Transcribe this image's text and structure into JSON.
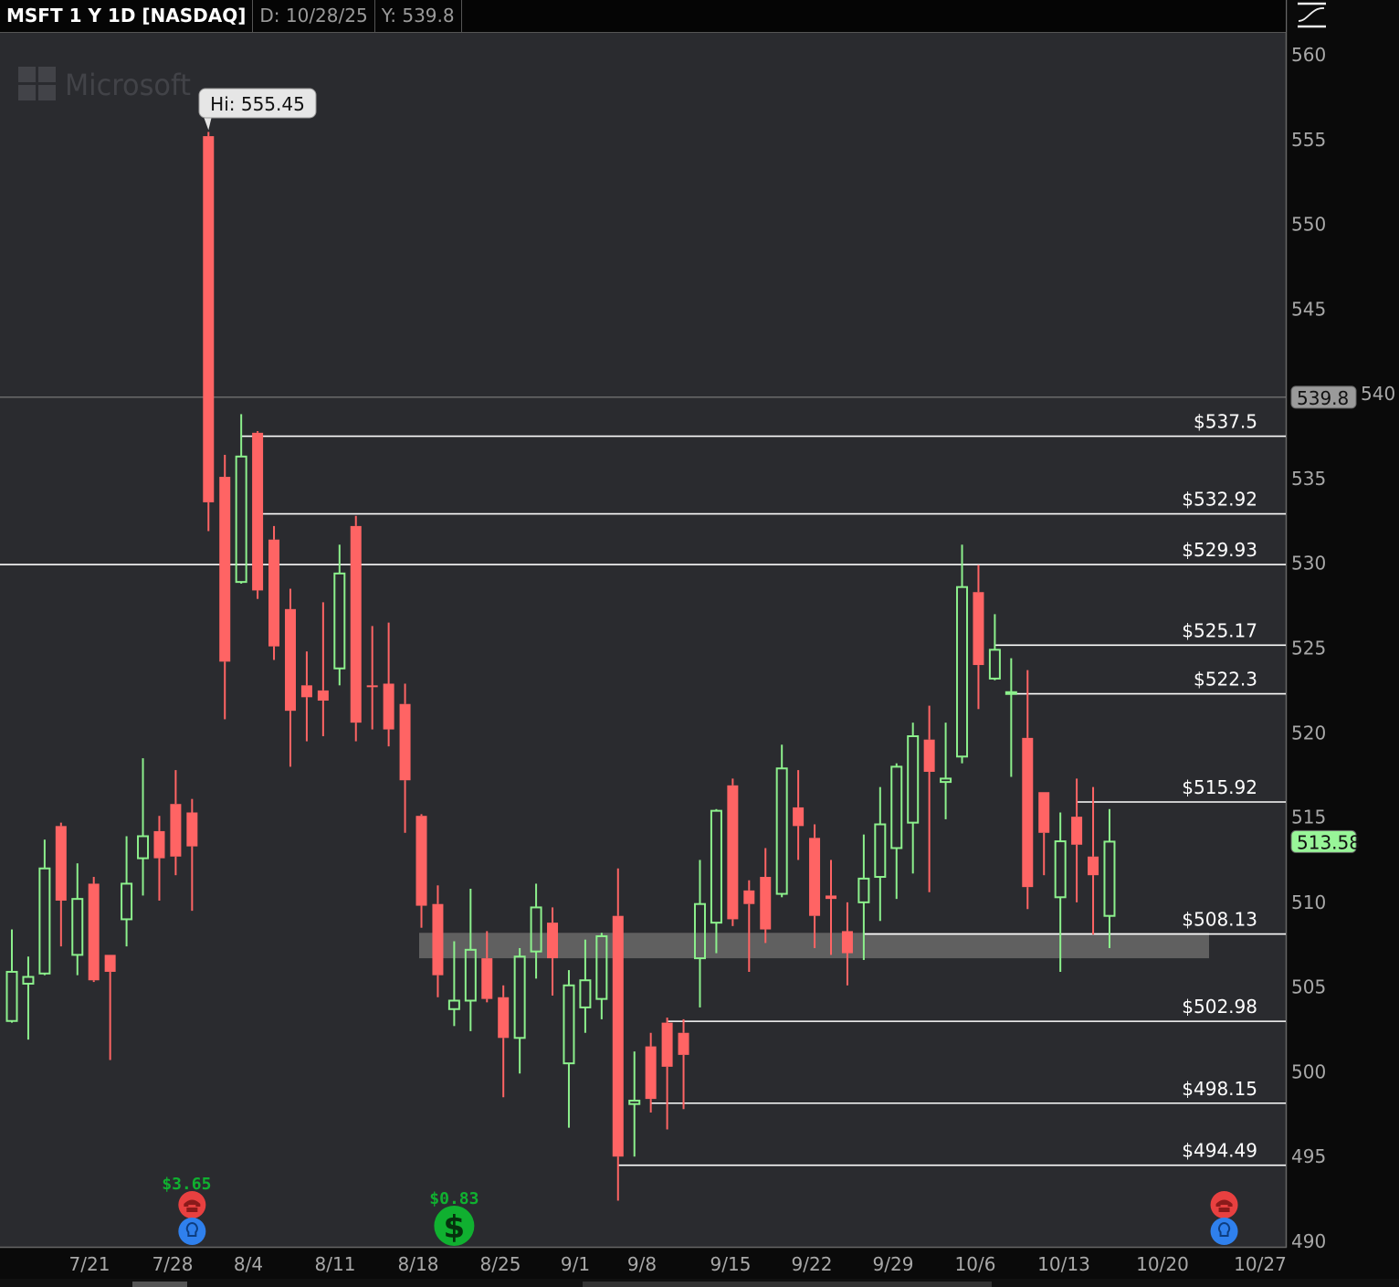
{
  "header": {
    "title": "MSFT 1 Y 1D [NASDAQ]",
    "date_readout": "D: 10/28/25",
    "y_readout": "Y: 539.8",
    "style_icon": "curve-settings-icon"
  },
  "watermark": "Microsoft",
  "colors": {
    "up": "#8cf08c",
    "down": "#ff6464",
    "background": "#2a2b2f",
    "level": "#ffffff",
    "zone": "#666666",
    "dividend": "#10b030",
    "earnings_red": "#e84040",
    "earnings_blue": "#2f80ed"
  },
  "chart_data": {
    "type": "candlestick",
    "ylim": [
      490,
      560
    ],
    "y_ticks": [
      "490",
      "495",
      "500",
      "505",
      "510",
      "515",
      "520",
      "525",
      "530",
      "535",
      "540",
      "545",
      "550",
      "555",
      "560"
    ],
    "x_tick_labels": [
      "7/21",
      "7/28",
      "8/4",
      "8/11",
      "8/18",
      "8/25",
      "9/1",
      "9/8",
      "9/15",
      "9/22",
      "9/29",
      "10/6",
      "10/13",
      "10/20",
      "10/27"
    ],
    "candles": [
      [
        "7/15",
        503.0,
        508.4,
        502.9,
        505.9
      ],
      [
        "7/16",
        505.2,
        506.8,
        501.9,
        505.6
      ],
      [
        "7/17",
        505.8,
        513.7,
        505.7,
        512.0
      ],
      [
        "7/18",
        514.5,
        514.7,
        507.4,
        510.1
      ],
      [
        "7/21",
        506.9,
        512.3,
        505.7,
        510.2
      ],
      [
        "7/22",
        511.1,
        511.5,
        505.3,
        505.4
      ],
      [
        "7/23",
        506.9,
        506.9,
        500.7,
        505.9
      ],
      [
        "7/24",
        509.0,
        513.9,
        507.4,
        511.1
      ],
      [
        "7/25",
        512.6,
        518.5,
        510.4,
        513.9
      ],
      [
        "7/28",
        514.2,
        515.1,
        510.1,
        512.6
      ],
      [
        "7/29",
        515.8,
        517.8,
        511.6,
        512.7
      ],
      [
        "7/30",
        515.3,
        516.1,
        509.5,
        513.3
      ],
      [
        "7/31",
        555.2,
        555.45,
        531.9,
        533.6
      ],
      [
        "8/1",
        535.1,
        536.4,
        520.8,
        524.2
      ],
      [
        "8/4",
        528.9,
        538.8,
        528.8,
        536.3
      ],
      [
        "8/5",
        537.7,
        537.8,
        527.9,
        528.4
      ],
      [
        "8/6",
        531.4,
        532.2,
        524.3,
        525.1
      ],
      [
        "8/7",
        527.3,
        528.5,
        518.0,
        521.3
      ],
      [
        "8/8",
        522.8,
        524.8,
        519.5,
        522.1
      ],
      [
        "8/11",
        522.5,
        527.7,
        519.8,
        521.9
      ],
      [
        "8/12",
        523.8,
        531.1,
        522.8,
        529.4
      ],
      [
        "8/13",
        532.2,
        532.8,
        519.5,
        520.6
      ],
      [
        "8/14",
        522.8,
        526.3,
        520.2,
        522.7
      ],
      [
        "8/15",
        522.9,
        526.5,
        519.2,
        520.2
      ],
      [
        "8/18",
        521.7,
        522.9,
        514.1,
        517.2
      ],
      [
        "8/19",
        515.1,
        515.2,
        508.5,
        509.8
      ],
      [
        "8/20",
        509.9,
        511.0,
        504.4,
        505.7
      ],
      [
        "8/21",
        503.7,
        507.7,
        502.7,
        504.2
      ],
      [
        "8/22",
        504.2,
        510.8,
        502.4,
        507.2
      ],
      [
        "8/25",
        506.7,
        508.3,
        504.1,
        504.3
      ],
      [
        "8/26",
        504.4,
        505.1,
        498.5,
        502.0
      ],
      [
        "8/27",
        502.0,
        507.3,
        499.9,
        506.8
      ],
      [
        "8/28",
        507.1,
        511.1,
        505.5,
        509.7
      ],
      [
        "8/29",
        508.8,
        509.7,
        504.5,
        506.7
      ],
      [
        "9/2",
        500.5,
        506.0,
        496.7,
        505.1
      ],
      [
        "9/3",
        503.8,
        507.8,
        502.3,
        505.4
      ],
      [
        "9/4",
        504.3,
        508.2,
        503.1,
        508.0
      ],
      [
        "9/5",
        509.2,
        512.0,
        492.4,
        495.0
      ],
      [
        "9/8",
        498.1,
        501.2,
        495.0,
        498.3
      ],
      [
        "9/9",
        501.5,
        502.3,
        497.6,
        498.4
      ],
      [
        "9/10",
        502.9,
        503.2,
        496.6,
        500.3
      ],
      [
        "9/11",
        502.3,
        503.1,
        497.8,
        501.0
      ],
      [
        "9/12",
        506.7,
        512.5,
        503.8,
        509.9
      ],
      [
        "9/15",
        508.8,
        515.5,
        507.0,
        515.4
      ],
      [
        "9/16",
        516.9,
        517.3,
        508.6,
        509.0
      ],
      [
        "9/17",
        510.7,
        511.3,
        505.9,
        509.9
      ],
      [
        "9/18",
        511.5,
        513.2,
        507.6,
        508.4
      ],
      [
        "9/19",
        510.5,
        519.3,
        510.3,
        517.9
      ],
      [
        "9/22",
        515.6,
        517.8,
        512.5,
        514.5
      ],
      [
        "9/23",
        513.8,
        514.6,
        507.3,
        509.2
      ],
      [
        "9/24",
        510.4,
        512.5,
        506.9,
        510.2
      ],
      [
        "9/25",
        508.3,
        510.0,
        505.1,
        507.0
      ],
      [
        "9/26",
        510.0,
        514.0,
        506.6,
        511.4
      ],
      [
        "9/29",
        511.5,
        516.8,
        508.9,
        514.6
      ],
      [
        "9/30",
        513.2,
        518.2,
        510.2,
        518.0
      ],
      [
        "10/1",
        514.7,
        520.6,
        511.7,
        519.8
      ],
      [
        "10/2",
        519.6,
        521.6,
        510.6,
        517.7
      ],
      [
        "10/3",
        517.1,
        520.6,
        514.9,
        517.3
      ],
      [
        "10/6",
        518.6,
        531.1,
        518.2,
        528.6
      ],
      [
        "10/7",
        528.3,
        529.9,
        521.4,
        524.0
      ],
      [
        "10/8",
        523.2,
        527.0,
        523.1,
        524.9
      ],
      [
        "10/9",
        522.3,
        524.4,
        517.4,
        522.4
      ],
      [
        "10/10",
        519.7,
        523.7,
        509.6,
        510.9
      ],
      [
        "10/13",
        516.5,
        516.5,
        511.6,
        514.1
      ],
      [
        "10/14",
        510.3,
        515.3,
        505.9,
        513.6
      ],
      [
        "10/15",
        515.05,
        517.3,
        510.0,
        513.4
      ],
      [
        "10/16",
        512.7,
        516.8,
        508.1,
        511.6
      ],
      [
        "10/17",
        509.2,
        515.5,
        507.3,
        513.58
      ]
    ],
    "levels": [
      {
        "label": "$537.5",
        "price": 537.5,
        "from": "8/4"
      },
      {
        "label": "$532.92",
        "price": 532.92,
        "from": "8/5"
      },
      {
        "label": "$529.93",
        "price": 529.93,
        "from": "start"
      },
      {
        "label": "$525.17",
        "price": 525.17,
        "from": "10/8"
      },
      {
        "label": "$522.3",
        "price": 522.3,
        "from": "10/9"
      },
      {
        "label": "$515.92",
        "price": 515.92,
        "from": "10/15"
      },
      {
        "label": "$508.13",
        "price": 508.13,
        "from": "9/26"
      },
      {
        "label": "$502.98",
        "price": 502.98,
        "from": "9/10"
      },
      {
        "label": "$498.15",
        "price": 498.15,
        "from": "9/9"
      },
      {
        "label": "$494.49",
        "price": 494.49,
        "from": "9/5"
      }
    ],
    "zone": {
      "from": "8/19",
      "to": "10/27",
      "high": 508.2,
      "low": 506.7
    },
    "high_marker": {
      "label": "Hi: 555.45",
      "price": 555.45,
      "date": "7/31"
    },
    "crosshair": {
      "price": 539.8,
      "label": "539.8"
    },
    "last_price": {
      "price": 513.58,
      "label": "513.58"
    },
    "events": [
      {
        "date": "7/30",
        "type": "earnings",
        "label": "$3.65"
      },
      {
        "date": "8/21",
        "type": "dividend",
        "label": "$0.83"
      },
      {
        "date": "10/28",
        "type": "earnings",
        "label": ""
      }
    ]
  }
}
